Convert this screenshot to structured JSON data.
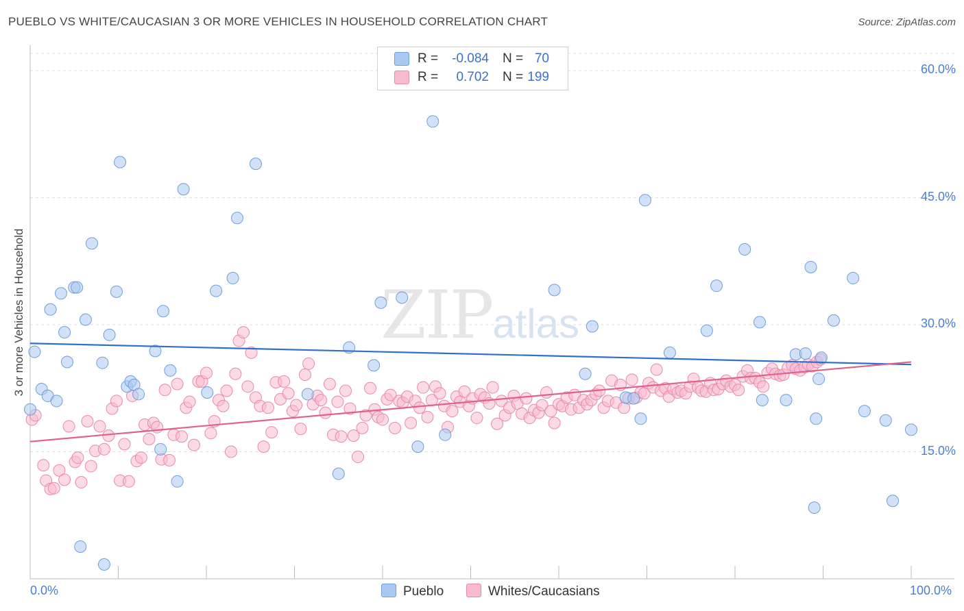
{
  "header": {
    "title": "PUEBLO VS WHITE/CAUCASIAN 3 OR MORE VEHICLES IN HOUSEHOLD CORRELATION CHART",
    "source": "Source: ZipAtlas.com"
  },
  "watermark": {
    "zip": "ZIP",
    "atlas": "atlas"
  },
  "legend": {
    "rows": [
      {
        "r_label": "R =",
        "r_value": "-0.084",
        "n_label": "N =",
        "n_value": "70",
        "color": "#a9c8f2",
        "border": "#6f9fdc"
      },
      {
        "r_label": "R =",
        "r_value": "0.702",
        "n_label": "N =",
        "n_value": "199",
        "color": "#f7bad0",
        "border": "#e889ab"
      }
    ]
  },
  "bottom_legend": {
    "pueblo": "Pueblo",
    "whites": "Whites/Caucasians"
  },
  "colors": {
    "pueblo_fill": "#a9c8f2",
    "pueblo_stroke": "#6f9fdc",
    "pueblo_line": "#2f6fd0",
    "whites_fill": "#f7bad0",
    "whites_stroke": "#e889ab",
    "whites_line": "#e0608e",
    "tick": "#4a7fcf",
    "grid": "#dddddd"
  },
  "chart_data": {
    "type": "scatter",
    "title": "PUEBLO VS WHITE/CAUCASIAN 3 OR MORE VEHICLES IN HOUSEHOLD CORRELATION CHART",
    "xlabel": "",
    "ylabel": "3 or more Vehicles in Household",
    "xlim": [
      0,
      100
    ],
    "ylim": [
      0,
      63
    ],
    "x_ticks": [
      "0.0%",
      "100.0%"
    ],
    "y_ticks": [
      {
        "value": 15,
        "label": "15.0%"
      },
      {
        "value": 30,
        "label": "30.0%"
      },
      {
        "value": 45,
        "label": "45.0%"
      },
      {
        "value": 60,
        "label": "60.0%"
      }
    ],
    "grid": true,
    "legend_position": "top-center",
    "series": [
      {
        "name": "Pueblo",
        "r": -0.084,
        "n": 70,
        "trend": {
          "x": [
            0,
            100
          ],
          "y": [
            27.8,
            25.3
          ]
        },
        "points": [
          [
            0.0,
            20.0
          ],
          [
            0.5,
            26.8
          ],
          [
            1.3,
            22.4
          ],
          [
            2.0,
            21.6
          ],
          [
            2.3,
            31.8
          ],
          [
            3.0,
            21.0
          ],
          [
            3.5,
            33.7
          ],
          [
            3.9,
            29.1
          ],
          [
            4.2,
            25.6
          ],
          [
            5.0,
            34.4
          ],
          [
            5.3,
            34.4
          ],
          [
            6.3,
            30.6
          ],
          [
            7.0,
            39.6
          ],
          [
            8.2,
            25.5
          ],
          [
            9.0,
            28.8
          ],
          [
            9.8,
            33.9
          ],
          [
            10.2,
            49.2
          ],
          [
            11.0,
            22.7
          ],
          [
            11.4,
            23.3
          ],
          [
            11.8,
            22.9
          ],
          [
            12.3,
            21.8
          ],
          [
            14.2,
            26.9
          ],
          [
            14.8,
            15.3
          ],
          [
            15.1,
            31.6
          ],
          [
            15.9,
            24.6
          ],
          [
            16.7,
            11.5
          ],
          [
            17.4,
            46.0
          ],
          [
            20.1,
            22.0
          ],
          [
            21.1,
            34.0
          ],
          [
            23.0,
            35.5
          ],
          [
            23.5,
            42.6
          ],
          [
            25.6,
            49.0
          ],
          [
            5.7,
            3.8
          ],
          [
            8.4,
            1.7
          ],
          [
            31.5,
            21.8
          ],
          [
            35.0,
            12.4
          ],
          [
            36.2,
            27.3
          ],
          [
            39.0,
            25.2
          ],
          [
            39.8,
            32.6
          ],
          [
            42.2,
            33.2
          ],
          [
            45.7,
            54.0
          ],
          [
            44.0,
            15.6
          ],
          [
            47.1,
            17.0
          ],
          [
            59.5,
            34.1
          ],
          [
            63.8,
            29.8
          ],
          [
            63.0,
            24.2
          ],
          [
            67.6,
            21.4
          ],
          [
            68.5,
            21.3
          ],
          [
            69.8,
            44.7
          ],
          [
            69.3,
            18.9
          ],
          [
            72.6,
            26.7
          ],
          [
            76.8,
            29.3
          ],
          [
            77.9,
            34.6
          ],
          [
            81.1,
            38.9
          ],
          [
            82.8,
            30.3
          ],
          [
            83.1,
            21.1
          ],
          [
            85.8,
            21.1
          ],
          [
            86.9,
            26.5
          ],
          [
            88.0,
            26.6
          ],
          [
            88.6,
            36.8
          ],
          [
            89.0,
            8.4
          ],
          [
            89.2,
            18.9
          ],
          [
            89.5,
            23.6
          ],
          [
            89.8,
            26.1
          ],
          [
            91.2,
            30.5
          ],
          [
            93.4,
            35.5
          ],
          [
            94.7,
            19.8
          ],
          [
            97.1,
            18.7
          ],
          [
            97.9,
            9.2
          ],
          [
            100.0,
            17.6
          ]
        ]
      },
      {
        "name": "Whites/Caucasians",
        "r": 0.702,
        "n": 199,
        "trend": {
          "x": [
            0,
            100
          ],
          "y": [
            16.2,
            25.6
          ]
        },
        "points": [
          [
            0.2,
            18.8
          ],
          [
            0.6,
            19.3
          ],
          [
            1.5,
            13.4
          ],
          [
            1.8,
            11.6
          ],
          [
            2.3,
            10.6
          ],
          [
            2.7,
            10.7
          ],
          [
            3.3,
            12.8
          ],
          [
            3.9,
            11.7
          ],
          [
            4.4,
            18.0
          ],
          [
            5.1,
            13.8
          ],
          [
            5.4,
            14.3
          ],
          [
            5.8,
            11.4
          ],
          [
            6.5,
            18.6
          ],
          [
            6.9,
            13.3
          ],
          [
            7.4,
            15.1
          ],
          [
            7.9,
            18.0
          ],
          [
            8.4,
            15.3
          ],
          [
            8.9,
            16.9
          ],
          [
            9.3,
            20.1
          ],
          [
            9.8,
            21.0
          ],
          [
            10.2,
            11.6
          ],
          [
            10.7,
            15.9
          ],
          [
            11.2,
            11.5
          ],
          [
            11.6,
            21.6
          ],
          [
            12.1,
            13.9
          ],
          [
            12.6,
            14.3
          ],
          [
            13.0,
            18.2
          ],
          [
            13.5,
            16.5
          ],
          [
            14.0,
            18.4
          ],
          [
            14.4,
            17.9
          ],
          [
            14.9,
            14.1
          ],
          [
            15.3,
            22.3
          ],
          [
            15.8,
            14.0
          ],
          [
            16.3,
            17.0
          ],
          [
            16.7,
            23.0
          ],
          [
            17.2,
            16.8
          ],
          [
            17.7,
            20.2
          ],
          [
            18.1,
            20.9
          ],
          [
            18.6,
            15.8
          ],
          [
            19.1,
            23.3
          ],
          [
            19.5,
            23.3
          ],
          [
            20.0,
            24.3
          ],
          [
            20.5,
            17.2
          ],
          [
            20.9,
            18.6
          ],
          [
            21.4,
            21.1
          ],
          [
            21.9,
            20.4
          ],
          [
            22.3,
            22.2
          ],
          [
            22.8,
            15.0
          ],
          [
            23.3,
            24.2
          ],
          [
            23.7,
            28.1
          ],
          [
            24.2,
            29.1
          ],
          [
            24.7,
            22.7
          ],
          [
            25.1,
            26.7
          ],
          [
            25.6,
            21.4
          ],
          [
            26.1,
            20.4
          ],
          [
            26.5,
            15.6
          ],
          [
            27.0,
            20.2
          ],
          [
            27.4,
            17.3
          ],
          [
            27.9,
            23.2
          ],
          [
            28.4,
            21.2
          ],
          [
            28.8,
            23.3
          ],
          [
            29.3,
            21.9
          ],
          [
            29.8,
            19.8
          ],
          [
            30.2,
            20.5
          ],
          [
            30.7,
            17.7
          ],
          [
            31.2,
            24.1
          ],
          [
            31.6,
            25.4
          ],
          [
            32.1,
            20.6
          ],
          [
            32.6,
            21.6
          ],
          [
            33.0,
            21.1
          ],
          [
            33.5,
            19.6
          ],
          [
            34.0,
            23.0
          ],
          [
            34.4,
            17.0
          ],
          [
            34.9,
            20.9
          ],
          [
            35.3,
            16.8
          ],
          [
            35.8,
            22.2
          ],
          [
            36.3,
            20.1
          ],
          [
            36.7,
            16.9
          ],
          [
            37.2,
            14.4
          ],
          [
            37.7,
            17.8
          ],
          [
            38.1,
            19.3
          ],
          [
            38.6,
            22.5
          ],
          [
            39.1,
            20.0
          ],
          [
            39.5,
            19.1
          ],
          [
            40.0,
            18.8
          ],
          [
            40.5,
            21.2
          ],
          [
            40.9,
            21.7
          ],
          [
            41.4,
            17.8
          ],
          [
            41.9,
            21.0
          ],
          [
            42.3,
            20.8
          ],
          [
            42.8,
            21.5
          ],
          [
            43.2,
            18.4
          ],
          [
            43.7,
            21.0
          ],
          [
            44.2,
            20.2
          ],
          [
            44.6,
            22.6
          ],
          [
            45.1,
            19.1
          ],
          [
            45.6,
            21.1
          ],
          [
            46.0,
            22.7
          ],
          [
            46.5,
            21.9
          ],
          [
            47.0,
            20.4
          ],
          [
            47.4,
            17.9
          ],
          [
            47.9,
            19.8
          ],
          [
            48.4,
            21.5
          ],
          [
            48.8,
            20.9
          ],
          [
            49.3,
            22.1
          ],
          [
            49.8,
            20.4
          ],
          [
            50.2,
            21.3
          ],
          [
            50.7,
            19.0
          ],
          [
            51.1,
            21.8
          ],
          [
            51.6,
            21.4
          ],
          [
            52.1,
            20.7
          ],
          [
            52.5,
            22.6
          ],
          [
            53.0,
            18.3
          ],
          [
            53.5,
            21.0
          ],
          [
            53.9,
            19.3
          ],
          [
            54.4,
            20.2
          ],
          [
            54.9,
            21.6
          ],
          [
            55.3,
            20.7
          ],
          [
            55.8,
            19.5
          ],
          [
            56.3,
            21.3
          ],
          [
            56.7,
            19.0
          ],
          [
            57.2,
            19.9
          ],
          [
            57.7,
            19.6
          ],
          [
            58.1,
            20.5
          ],
          [
            58.6,
            22.0
          ],
          [
            59.1,
            19.8
          ],
          [
            59.5,
            18.4
          ],
          [
            60.0,
            20.6
          ],
          [
            60.4,
            20.4
          ],
          [
            60.9,
            21.4
          ],
          [
            61.4,
            20.0
          ],
          [
            61.8,
            21.7
          ],
          [
            62.3,
            20.2
          ],
          [
            62.8,
            21.1
          ],
          [
            63.2,
            20.6
          ],
          [
            63.7,
            21.1
          ],
          [
            64.2,
            21.8
          ],
          [
            64.6,
            22.2
          ],
          [
            65.1,
            20.2
          ],
          [
            65.6,
            21.0
          ],
          [
            66.0,
            23.4
          ],
          [
            66.5,
            20.8
          ],
          [
            67.0,
            22.9
          ],
          [
            67.4,
            20.2
          ],
          [
            67.9,
            21.3
          ],
          [
            68.3,
            23.5
          ],
          [
            68.8,
            21.4
          ],
          [
            69.3,
            22.0
          ],
          [
            69.7,
            21.9
          ],
          [
            70.2,
            23.1
          ],
          [
            70.7,
            22.6
          ],
          [
            71.1,
            24.7
          ],
          [
            71.6,
            22.2
          ],
          [
            72.1,
            22.5
          ],
          [
            72.5,
            21.5
          ],
          [
            73.0,
            22.4
          ],
          [
            73.5,
            22.0
          ],
          [
            73.9,
            22.2
          ],
          [
            74.4,
            21.9
          ],
          [
            74.9,
            22.7
          ],
          [
            75.3,
            23.6
          ],
          [
            75.8,
            22.6
          ],
          [
            76.2,
            22.2
          ],
          [
            76.7,
            22.1
          ],
          [
            77.2,
            23.1
          ],
          [
            77.6,
            22.3
          ],
          [
            78.1,
            22.4
          ],
          [
            78.6,
            23.0
          ],
          [
            79.0,
            23.4
          ],
          [
            79.5,
            22.7
          ],
          [
            80.0,
            22.9
          ],
          [
            80.4,
            22.3
          ],
          [
            80.9,
            23.9
          ],
          [
            81.4,
            24.6
          ],
          [
            81.8,
            23.7
          ],
          [
            82.3,
            23.7
          ],
          [
            82.8,
            23.2
          ],
          [
            83.2,
            22.7
          ],
          [
            83.7,
            24.3
          ],
          [
            84.2,
            24.8
          ],
          [
            84.6,
            24.2
          ],
          [
            85.1,
            24.0
          ],
          [
            85.5,
            24.1
          ],
          [
            86.0,
            24.9
          ],
          [
            86.5,
            25.2
          ],
          [
            86.9,
            24.8
          ],
          [
            87.4,
            24.6
          ],
          [
            87.9,
            25.0
          ],
          [
            88.3,
            25.3
          ],
          [
            88.8,
            25.1
          ],
          [
            89.3,
            25.6
          ],
          [
            89.7,
            25.9
          ]
        ]
      }
    ]
  }
}
